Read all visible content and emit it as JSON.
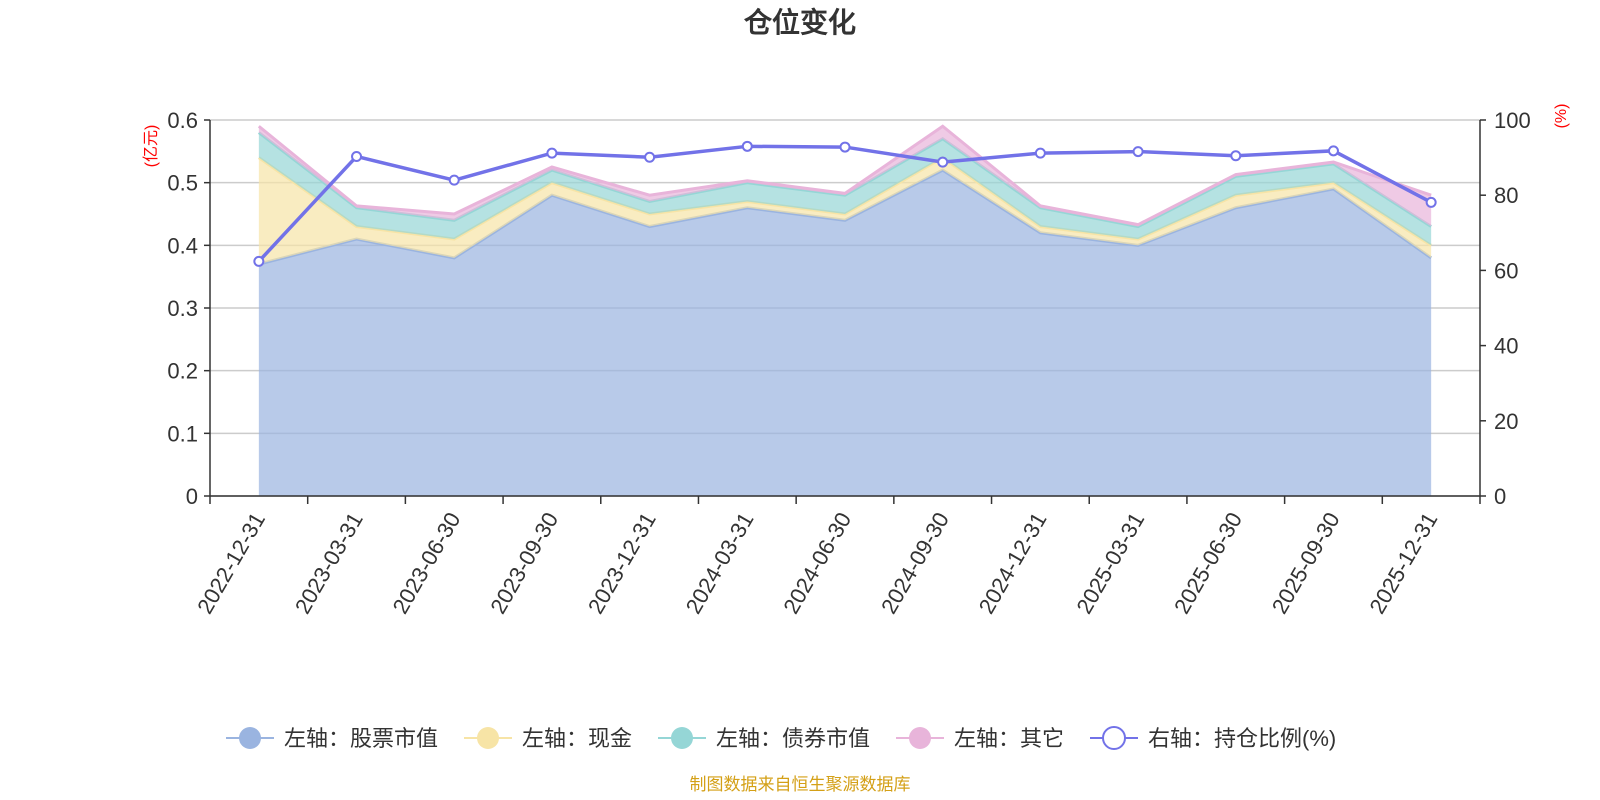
{
  "title": "仓位变化",
  "source": "制图数据来自恒生聚源数据库",
  "left_unit": "(亿元)",
  "right_unit": "(%)",
  "colors": {
    "stock": "#9ab4e0",
    "cash": "#f7e4a6",
    "bond": "#95d6d6",
    "other": "#e8b4da",
    "ratio": "#7272e8",
    "source": "#d4a017",
    "grid": "#cccccc"
  },
  "legend": [
    {
      "key": "stock",
      "label": "左轴：股票市值",
      "icon": "filled-circle-icon"
    },
    {
      "key": "cash",
      "label": "左轴：现金",
      "icon": "filled-circle-icon"
    },
    {
      "key": "bond",
      "label": "左轴：债券市值",
      "icon": "filled-circle-icon"
    },
    {
      "key": "other",
      "label": "左轴：其它",
      "icon": "filled-circle-icon"
    },
    {
      "key": "ratio",
      "label": "右轴：持仓比例(%)",
      "icon": "hollow-circle-icon"
    }
  ],
  "chart_data": {
    "type": "area",
    "title": "仓位变化",
    "categories": [
      "2022-12-31",
      "2023-03-31",
      "2023-06-30",
      "2023-09-30",
      "2023-12-31",
      "2024-03-31",
      "2024-06-30",
      "2024-09-30",
      "2024-12-31",
      "2025-03-31",
      "2025-06-30",
      "2025-09-30",
      "2025-12-31"
    ],
    "left_axis": {
      "unit": "(亿元)",
      "ylim": [
        0,
        0.6
      ],
      "ticks": [
        "0",
        "0.1",
        "0.2",
        "0.3",
        "0.4",
        "0.5",
        "0.6"
      ],
      "tick_values": [
        0,
        0.1,
        0.2,
        0.3,
        0.4,
        0.5,
        0.6
      ]
    },
    "right_axis": {
      "unit": "(%)",
      "ylim": [
        0,
        100
      ],
      "ticks": [
        "0",
        "20",
        "40",
        "60",
        "80",
        "100"
      ],
      "tick_values": [
        0,
        20,
        40,
        60,
        80,
        100
      ]
    },
    "stacked": true,
    "series": [
      {
        "key": "stock",
        "name": "左轴：股票市值",
        "axis": "left",
        "type": "area",
        "values": [
          0.37,
          0.41,
          0.38,
          0.48,
          0.43,
          0.46,
          0.44,
          0.52,
          0.42,
          0.4,
          0.46,
          0.49,
          0.38
        ]
      },
      {
        "key": "cash",
        "name": "左轴：现金",
        "axis": "left",
        "type": "area",
        "values": [
          0.17,
          0.02,
          0.03,
          0.02,
          0.02,
          0.01,
          0.01,
          0.02,
          0.01,
          0.01,
          0.02,
          0.01,
          0.02
        ]
      },
      {
        "key": "bond",
        "name": "左轴：债券市值",
        "axis": "left",
        "type": "area",
        "values": [
          0.04,
          0.03,
          0.03,
          0.02,
          0.02,
          0.03,
          0.03,
          0.03,
          0.03,
          0.02,
          0.03,
          0.03,
          0.03
        ]
      },
      {
        "key": "other",
        "name": "左轴：其它",
        "axis": "left",
        "type": "area",
        "values": [
          0.01,
          0.003,
          0.01,
          0.005,
          0.01,
          0.003,
          0.003,
          0.02,
          0.003,
          0.003,
          0.003,
          0.003,
          0.05
        ]
      },
      {
        "key": "ratio",
        "name": "右轴：持仓比例(%)",
        "axis": "right",
        "type": "line",
        "values": [
          62.4,
          90.3,
          84.0,
          91.2,
          90.1,
          93.0,
          92.8,
          88.8,
          91.2,
          91.6,
          90.5,
          91.8,
          78.1
        ]
      }
    ],
    "grid": true,
    "legend_position": "bottom"
  }
}
